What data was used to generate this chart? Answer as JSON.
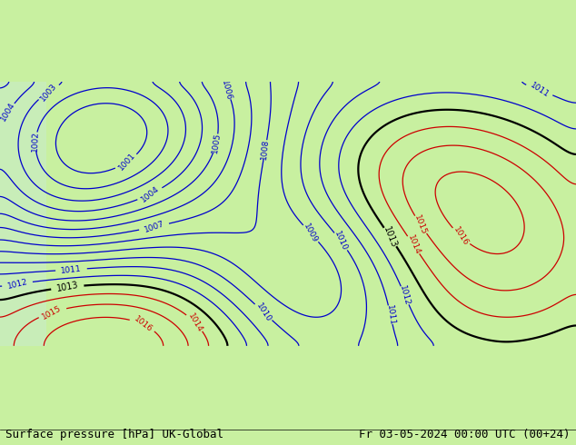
{
  "title_left": "Surface pressure [hPa] UK-Global",
  "title_right": "Fr 03-05-2024 00:00 UTC (00+24)",
  "bg_color_ocean": "#c8e8ff",
  "bg_color_land": "#c8f0a0",
  "bg_color_bottom": "#c8f0a0",
  "label_fontsize": 9,
  "title_fontsize": 9,
  "figsize": [
    6.34,
    4.9
  ],
  "dpi": 100
}
